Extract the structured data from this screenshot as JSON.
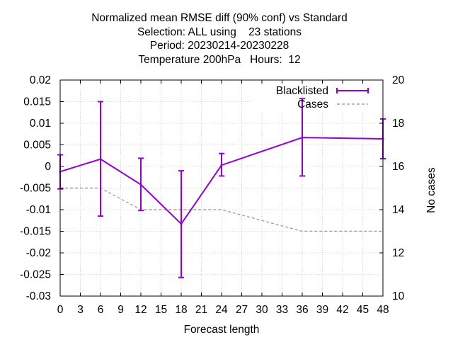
{
  "chart_data": {
    "type": "line",
    "title": [
      "Normalized mean RMSE diff (90% conf) vs Standard",
      "Selection: ALL using    23 stations",
      "Period: 20230214-20230228",
      "Temperature 200hPa   Hours:  12"
    ],
    "xlabel": "Forecast length",
    "ylabel": "",
    "y2label": "No cases",
    "xlim": [
      0,
      48
    ],
    "ylim": [
      -0.03,
      0.02
    ],
    "y2lim": [
      10,
      20
    ],
    "xticks": [
      "0",
      "3",
      "6",
      "9",
      "12",
      "15",
      "18",
      "21",
      "24",
      "27",
      "30",
      "33",
      "36",
      "39",
      "42",
      "45",
      "48"
    ],
    "yticks": [
      "0.02",
      "0.015",
      "0.01",
      "0.005",
      "0",
      "-0.005",
      "-0.01",
      "-0.015",
      "-0.02",
      "-0.025",
      "-0.03"
    ],
    "y2ticks": [
      "20",
      "18",
      "16",
      "14",
      "12",
      "10"
    ],
    "grid": true,
    "legend_position": "top-right",
    "series": [
      {
        "name": "Blacklisted",
        "color": "#9400d3",
        "x": [
          0,
          6,
          12,
          18,
          24,
          36,
          48
        ],
        "y": [
          -0.0012,
          0.0017,
          -0.0042,
          -0.0133,
          0.0003,
          0.0067,
          0.0064
        ],
        "y_low": [
          -0.0052,
          -0.0115,
          -0.0102,
          -0.0257,
          -0.0022,
          -0.0022,
          0.0018
        ],
        "y_high": [
          0.0027,
          0.015,
          0.0019,
          -0.001,
          0.003,
          0.0157,
          0.011
        ]
      },
      {
        "name": "Cases",
        "color": "#a0a0a0",
        "axis": "y2",
        "x": [
          0,
          6,
          12,
          18,
          24,
          36,
          48
        ],
        "y": [
          15,
          15,
          14,
          14,
          14,
          13,
          13
        ]
      }
    ]
  }
}
